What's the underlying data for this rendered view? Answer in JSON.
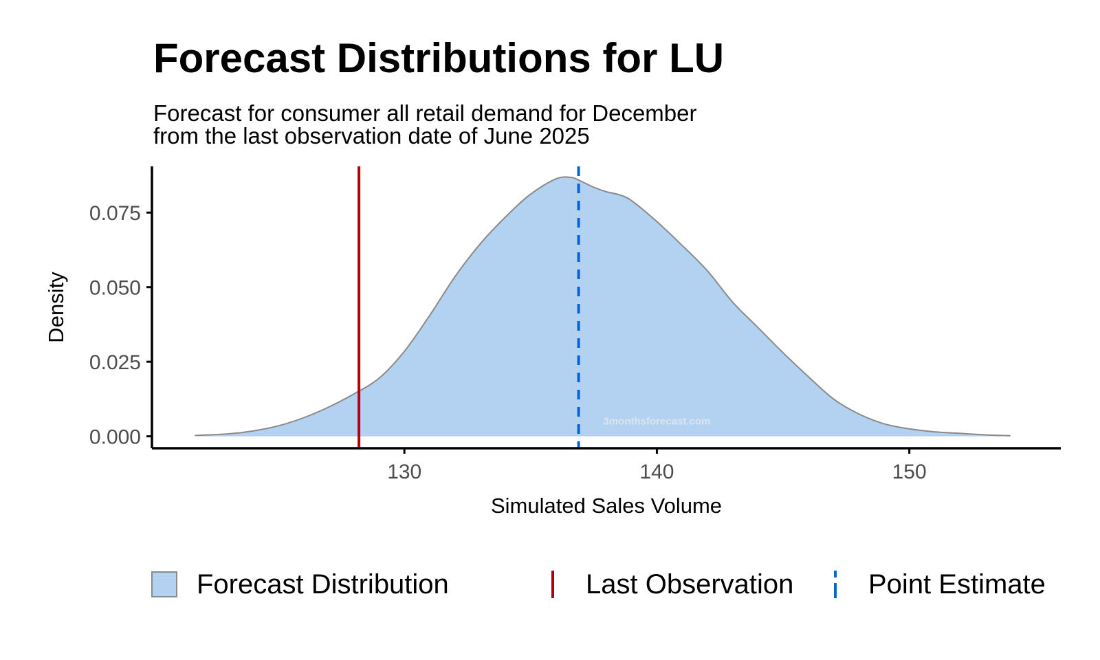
{
  "chart_data": {
    "type": "area",
    "title": "Forecast Distributions for LU",
    "subtitle_lines": [
      "Forecast for consumer all retail demand for December",
      "from the last observation date of June 2025"
    ],
    "xlabel": "Simulated Sales Volume",
    "ylabel": "Density",
    "xlim": [
      120.0,
      156.0
    ],
    "ylim": [
      -0.004,
      0.0905
    ],
    "x_ticks": [
      130,
      140,
      150
    ],
    "x_tick_labels": [
      "130",
      "140",
      "150"
    ],
    "y_ticks": [
      0.0,
      0.025,
      0.05,
      0.075
    ],
    "y_tick_labels": [
      "0.000",
      "0.025",
      "0.050",
      "0.075"
    ],
    "grid": false,
    "legend_position": "bottom",
    "series": [
      {
        "name": "Forecast Distribution",
        "kind": "density",
        "x": [
          121.7,
          123.0,
          124.0,
          125.0,
          126.0,
          127.0,
          128.0,
          129.0,
          130.0,
          131.0,
          132.0,
          133.0,
          134.0,
          135.0,
          136.0,
          136.6,
          137.0,
          137.5,
          138.0,
          138.5,
          139.0,
          140.0,
          141.0,
          142.0,
          143.0,
          144.0,
          145.0,
          146.0,
          147.0,
          148.0,
          149.0,
          150.0,
          151.0,
          152.0,
          153.0,
          154.0
        ],
        "y": [
          0.0003,
          0.0008,
          0.0018,
          0.0035,
          0.0062,
          0.0098,
          0.0142,
          0.0195,
          0.0285,
          0.0405,
          0.0535,
          0.0645,
          0.0735,
          0.0812,
          0.0863,
          0.0868,
          0.0855,
          0.0835,
          0.082,
          0.081,
          0.079,
          0.072,
          0.064,
          0.0555,
          0.045,
          0.0365,
          0.028,
          0.02,
          0.0125,
          0.0075,
          0.0042,
          0.0025,
          0.0015,
          0.001,
          0.0005,
          0.0002
        ],
        "color": "#b3d1f0",
        "stroke": "#8a8a8a"
      },
      {
        "name": "Last Observation",
        "kind": "vline",
        "x": 128.2,
        "color": "#b5000c",
        "linestyle": "solid"
      },
      {
        "name": "Point Estimate",
        "kind": "vline",
        "x": 136.9,
        "color": "#0b63ce",
        "linestyle": "dashed"
      }
    ],
    "annotations": [
      {
        "text": "3monthsforecast.com",
        "kind": "watermark",
        "x": 140.0,
        "y": 0.004
      }
    ]
  }
}
